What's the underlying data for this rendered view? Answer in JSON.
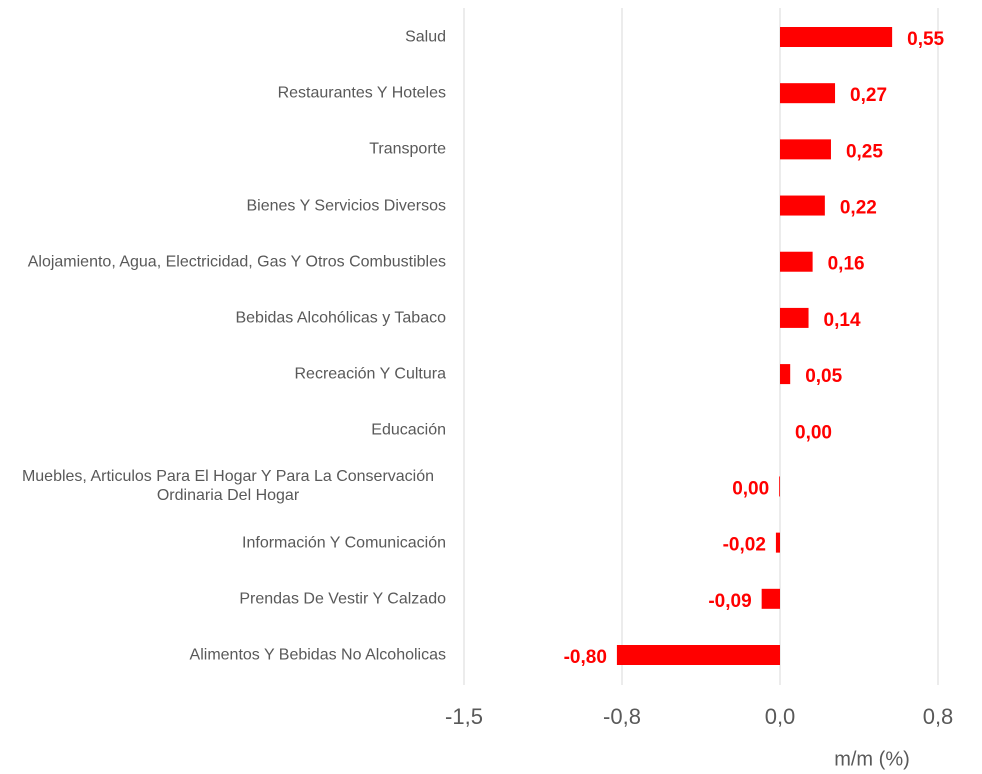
{
  "chart_data": {
    "type": "bar",
    "orientation": "horizontal",
    "categories": [
      "Salud",
      "Restaurantes Y Hoteles",
      "Transporte",
      "Bienes Y Servicios Diversos",
      "Alojamiento, Agua, Electricidad, Gas Y Otros Combustibles",
      "Bebidas Alcohólicas y Tabaco",
      "Recreación Y Cultura",
      "Educación",
      "Muebles, Articulos Para El Hogar Y Para La Conservación Ordinaria Del Hogar",
      "Información Y Comunicación",
      "Prendas De Vestir Y Calzado",
      "Alimentos Y Bebidas No Alcoholicas"
    ],
    "values": [
      0.55,
      0.27,
      0.25,
      0.22,
      0.16,
      0.14,
      0.05,
      0,
      -0.004,
      -0.02,
      -0.09,
      -0.8
    ],
    "value_labels": [
      "0,55",
      "0,27",
      "0,25",
      "0,22",
      "0,16",
      "0,14",
      "0,05",
      "0,00",
      "0,00",
      "-0,02",
      "-0,09",
      "-0,80"
    ],
    "color": "#ff0000",
    "xlim": [
      -1.55,
      0.775
    ],
    "xticks": [
      {
        "value": -1.55,
        "label": "-1,5"
      },
      {
        "value": -0.775,
        "label": "-0,8"
      },
      {
        "value": 0,
        "label": "0,0"
      },
      {
        "value": 0.775,
        "label": "0,8"
      }
    ],
    "x_label": "m/m (%)",
    "grid": true
  }
}
